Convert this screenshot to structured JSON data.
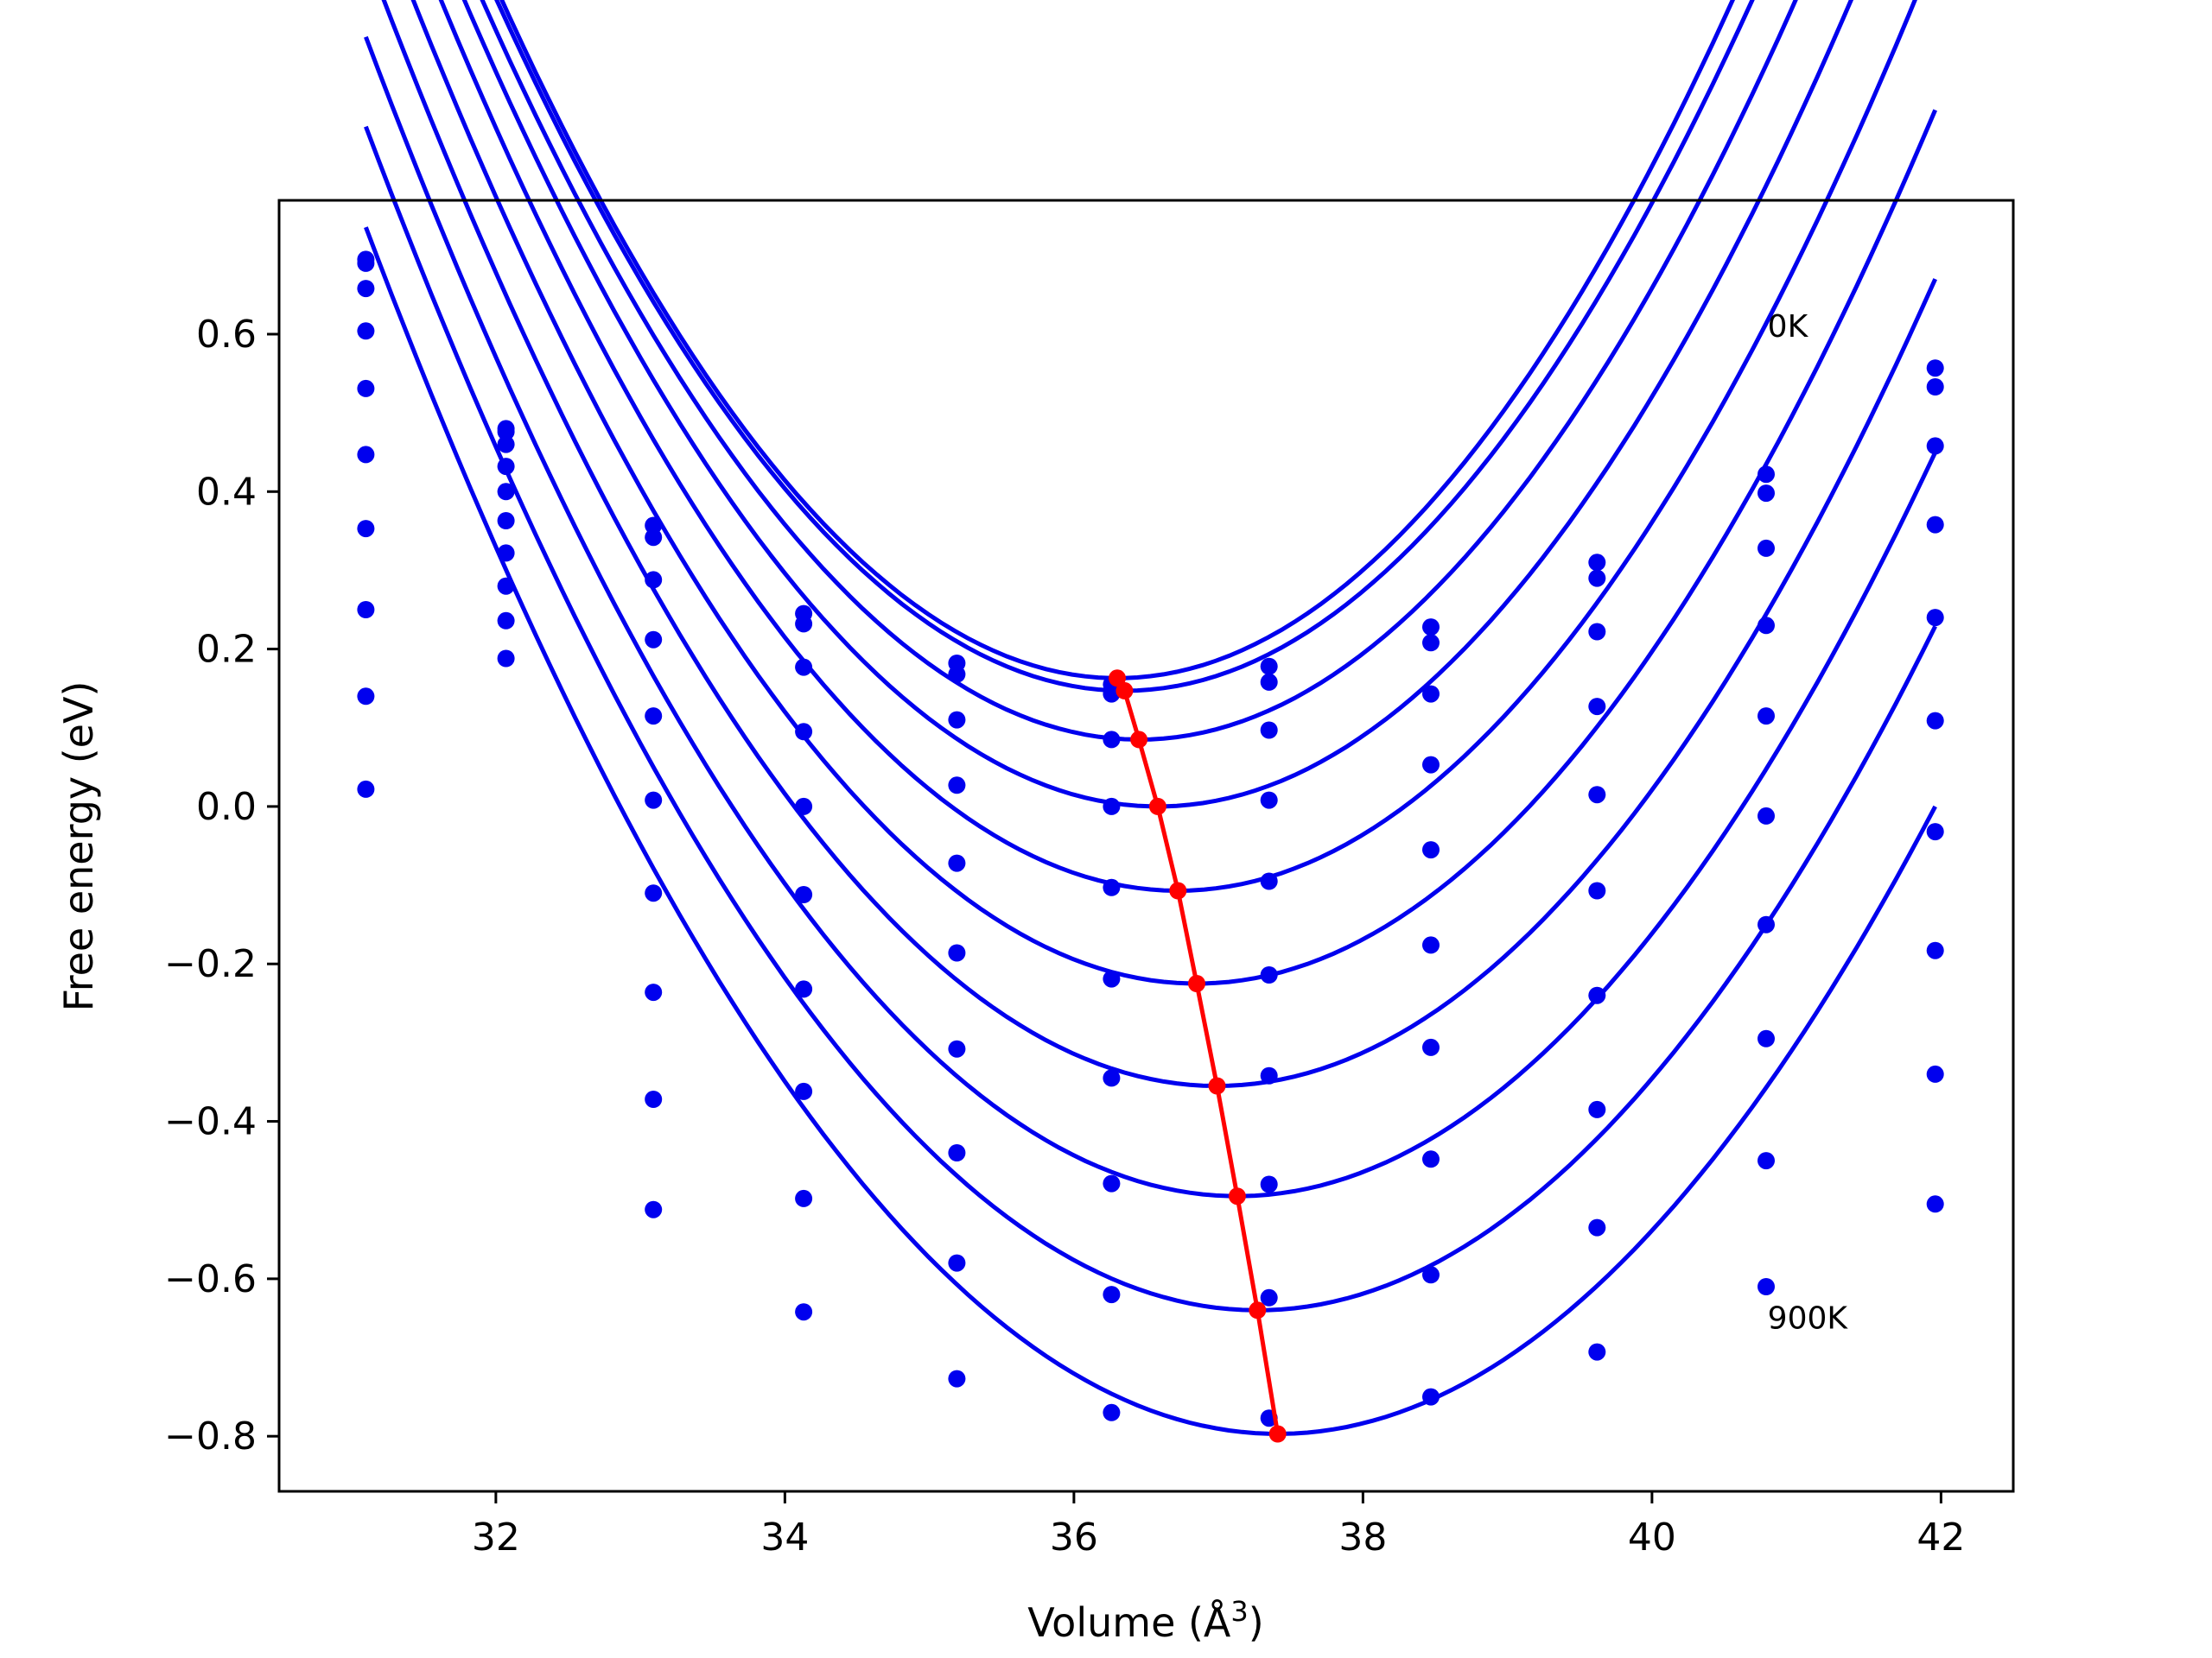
{
  "chart_data": {
    "type": "line",
    "title": "",
    "xlabel": "Volume (Å",
    "xlabel_sup": "3",
    "xlabel_tail": ")",
    "ylabel": "Free energy (eV)",
    "xlim": [
      30.5,
      42.5
    ],
    "ylim": [
      -0.87,
      0.77
    ],
    "xticks": [
      32,
      34,
      36,
      38,
      40,
      42
    ],
    "xtick_labels": [
      "32",
      "34",
      "36",
      "38",
      "40",
      "42"
    ],
    "yticks": [
      0.6,
      0.4,
      0.2,
      0.0,
      -0.2,
      -0.4,
      -0.6,
      -0.8
    ],
    "ytick_labels": [
      "0.6",
      "0.4",
      "0.2",
      "0.0",
      "−0.2",
      "−0.4",
      "−0.6",
      "−0.8"
    ],
    "grid": false,
    "colors": {
      "data": "#0000ee",
      "fit": "#0000ee",
      "minima": "#ff0000",
      "frame": "#000000"
    },
    "annotations": [
      {
        "text": "0K",
        "x": 40.8,
        "y": 0.61
      },
      {
        "text": "900K",
        "x": 40.8,
        "y": -0.65
      }
    ],
    "x": [
      31.1,
      32.07,
      33.09,
      34.13,
      35.19,
      36.26,
      37.35,
      38.47,
      39.62,
      40.79,
      41.96
    ],
    "series": [
      {
        "values": [
          0.695,
          0.48,
          0.357,
          0.245,
          0.182,
          0.155,
          0.178,
          0.228,
          0.31,
          0.422,
          0.557
        ],
        "fit_vmin": 36.3,
        "fit_emin": 0.163,
        "fit_a": 0.0475
      },
      {
        "values": [
          0.69,
          0.476,
          0.342,
          0.232,
          0.168,
          0.143,
          0.158,
          0.208,
          0.29,
          0.398,
          0.533
        ],
        "fit_vmin": 36.35,
        "fit_emin": 0.147,
        "fit_a": 0.0465
      },
      {
        "values": [
          0.658,
          0.46,
          0.288,
          0.177,
          0.11,
          0.085,
          0.097,
          0.143,
          0.222,
          0.328,
          0.458
        ],
        "fit_vmin": 36.45,
        "fit_emin": 0.085,
        "fit_a": 0.0455
      },
      {
        "values": [
          0.604,
          0.432,
          0.212,
          0.095,
          0.027,
          0.0,
          0.008,
          0.053,
          0.127,
          0.23,
          0.358
        ],
        "fit_vmin": 36.58,
        "fit_emin": 0.0,
        "fit_a": 0.0445
      },
      {
        "values": [
          0.531,
          0.4,
          0.115,
          0.0,
          -0.072,
          -0.103,
          -0.095,
          -0.055,
          0.015,
          0.115,
          0.24
        ],
        "fit_vmin": 36.72,
        "fit_emin": -0.107,
        "fit_a": 0.0435
      },
      {
        "values": [
          0.447,
          0.363,
          0.008,
          -0.112,
          -0.186,
          -0.219,
          -0.214,
          -0.176,
          -0.107,
          -0.012,
          0.109
        ],
        "fit_vmin": 36.85,
        "fit_emin": -0.225,
        "fit_a": 0.0425
      },
      {
        "values": [
          0.353,
          0.322,
          -0.11,
          -0.232,
          -0.308,
          -0.345,
          -0.342,
          -0.306,
          -0.24,
          -0.15,
          -0.032
        ],
        "fit_vmin": 36.99,
        "fit_emin": -0.355,
        "fit_a": 0.0415
      },
      {
        "values": [
          0.25,
          0.28,
          -0.236,
          -0.362,
          -0.44,
          -0.479,
          -0.48,
          -0.448,
          -0.385,
          -0.295,
          -0.183
        ],
        "fit_vmin": 37.13,
        "fit_emin": -0.495,
        "fit_a": 0.0405
      },
      {
        "values": [
          0.14,
          0.236,
          -0.372,
          -0.498,
          -0.58,
          -0.62,
          -0.624,
          -0.595,
          -0.535,
          -0.45,
          -0.34
        ],
        "fit_vmin": 37.27,
        "fit_emin": -0.64,
        "fit_a": 0.0395
      },
      {
        "values": [
          0.022,
          0.188,
          -0.512,
          -0.642,
          -0.727,
          -0.77,
          -0.777,
          -0.75,
          -0.693,
          -0.61,
          -0.505
        ],
        "fit_vmin": 37.41,
        "fit_emin": -0.797,
        "fit_a": 0.0385
      }
    ],
    "fit_range": [
      31.1,
      41.96
    ],
    "minima": {
      "x": [
        36.3,
        36.35,
        36.45,
        36.58,
        36.72,
        36.85,
        36.99,
        37.13,
        37.27,
        37.41
      ],
      "y": [
        0.163,
        0.147,
        0.085,
        0.0,
        -0.107,
        -0.225,
        -0.355,
        -0.495,
        -0.64,
        -0.797
      ]
    }
  }
}
